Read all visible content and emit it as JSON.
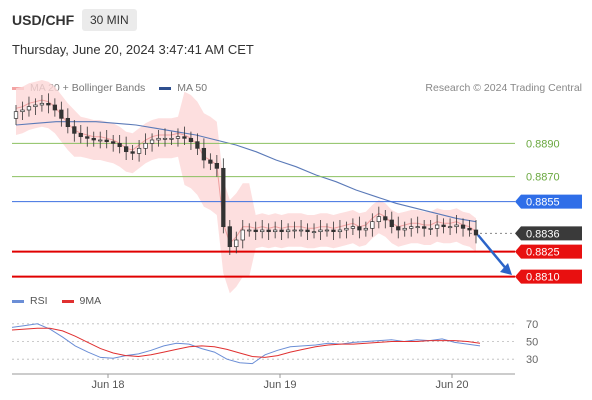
{
  "header": {
    "pair": "USD/CHF",
    "timeframe": "30 MIN"
  },
  "timestamp": "Thursday, June 20, 2024 3:47:41 AM CET",
  "legend": {
    "ma20_label": "MA 20 + Bollinger Bands",
    "ma50_label": "MA 50",
    "credit": "Research © 2024 Trading Central"
  },
  "rsi_legend": {
    "rsi_label": "RSI",
    "ma_label": "9MA"
  },
  "colors": {
    "up": "#2e2e2e",
    "down": "#2e2e2e",
    "boll_fill": "#fcd7d7",
    "ma20": "#f0a0a0",
    "ma50": "#5b7ab8",
    "resistance": "#8cc060",
    "pivot": "#3b6fe0",
    "support": "#e00000",
    "rsi": "#6b8ed6",
    "rsi_ma": "#e03030",
    "current": "#333333"
  },
  "chart_data": [
    {
      "type": "candlestick",
      "title": "",
      "x_ticks": [
        "Jun 18",
        "Jun 19",
        "Jun 20"
      ],
      "ylim": [
        0.8802,
        0.8916
      ],
      "levels": [
        {
          "label": "0.8890",
          "value": 0.889,
          "kind": "resistance"
        },
        {
          "label": "0.8870",
          "value": 0.887,
          "kind": "resistance"
        },
        {
          "label": "0.8855",
          "value": 0.8855,
          "kind": "pivot"
        },
        {
          "label": "0.8836",
          "value": 0.8836,
          "kind": "current"
        },
        {
          "label": "0.8825",
          "value": 0.8825,
          "kind": "support"
        },
        {
          "label": "0.8810",
          "value": 0.881,
          "kind": "support"
        }
      ],
      "series": [
        {
          "name": "MA 20 + Bollinger Bands",
          "note": "close path",
          "values": [
            0.8909,
            0.891,
            0.8912,
            0.8913,
            0.8914,
            0.8913,
            0.891,
            0.8905,
            0.89,
            0.8896,
            0.8894,
            0.8893,
            0.8892,
            0.8892,
            0.8891,
            0.889,
            0.8888,
            0.8885,
            0.8884,
            0.8887,
            0.889,
            0.8892,
            0.8893,
            0.8893,
            0.8893,
            0.8894,
            0.8893,
            0.8891,
            0.8887,
            0.888,
            0.8878,
            0.8875,
            0.884,
            0.8828,
            0.8832,
            0.8838,
            0.8838,
            0.8837,
            0.8838,
            0.8837,
            0.8838,
            0.8837,
            0.8838,
            0.8838,
            0.8838,
            0.8837,
            0.8837,
            0.8838,
            0.8838,
            0.8837,
            0.8838,
            0.8839,
            0.884,
            0.8838,
            0.8839,
            0.8843,
            0.8846,
            0.8844,
            0.884,
            0.8838,
            0.8839,
            0.884,
            0.884,
            0.8839,
            0.8839,
            0.8841,
            0.884,
            0.884,
            0.8841,
            0.8839,
            0.8838,
            0.8835
          ]
        },
        {
          "name": "MA 50",
          "note": "",
          "values": [
            0.8901,
            0.8902,
            0.8903,
            0.8903,
            0.8903,
            0.8902,
            0.8901,
            0.8899,
            0.8897,
            0.8895,
            0.8892,
            0.8889,
            0.8885,
            0.888,
            0.8876,
            0.8871,
            0.8867,
            0.8862,
            0.8858,
            0.8854,
            0.8851,
            0.8848,
            0.8845,
            0.8843
          ]
        }
      ]
    },
    {
      "type": "line",
      "title": "",
      "y_ticks": [
        70,
        50,
        30
      ],
      "ylim": [
        20,
        80
      ],
      "series": [
        {
          "name": "RSI",
          "values": [
            66,
            68,
            70,
            64,
            55,
            45,
            38,
            32,
            31,
            34,
            36,
            40,
            45,
            48,
            47,
            42,
            38,
            30,
            26,
            25,
            35,
            40,
            44,
            45,
            46,
            48,
            47,
            49,
            50,
            51,
            52,
            50,
            52,
            51,
            53,
            49,
            47,
            45
          ]
        },
        {
          "name": "9MA",
          "values": [
            63,
            64,
            65,
            65,
            62,
            56,
            49,
            42,
            37,
            34,
            33,
            35,
            38,
            41,
            44,
            45,
            44,
            41,
            37,
            33,
            32,
            34,
            38,
            41,
            44,
            46,
            47,
            47,
            48,
            49,
            50,
            50,
            50,
            51,
            51,
            51,
            50,
            48
          ]
        }
      ]
    }
  ]
}
